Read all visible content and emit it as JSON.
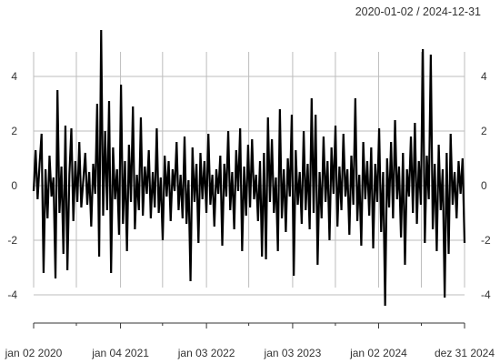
{
  "header": {
    "date_range": "2020-01-02 / 2024-12-31"
  },
  "chart_data": {
    "type": "line",
    "title": "",
    "xlabel": "",
    "ylabel": "",
    "ylim": [
      -4.8,
      5.8
    ],
    "xlim": [
      "2020-01-02",
      "2024-12-31"
    ],
    "grid": true,
    "legend": "none",
    "y_ticks": [
      -4,
      -2,
      0,
      2,
      4
    ],
    "y_tick_labels": [
      "-4",
      "-2",
      "0",
      "2",
      "4"
    ],
    "x_ticks": [
      "2020-01-02",
      "2021-01-04",
      "2022-01-03",
      "2023-01-03",
      "2024-01-02",
      "2024-12-31"
    ],
    "x_tick_labels": [
      "jan 02 2020",
      "jan 04 2021",
      "jan 03 2022",
      "jan 03 2023",
      "jan 02 2024",
      "dez 31 2024"
    ],
    "x_minor_ticks": [
      "2020-07-01",
      "2021-07-01",
      "2022-07-01",
      "2023-07-03",
      "2024-07-01"
    ],
    "series": [
      {
        "color": "#000000",
        "x_start": "2020-01-02",
        "x_end": "2024-12-31",
        "values": [
          -0.2,
          1.3,
          -0.5,
          0.8,
          1.9,
          -3.2,
          0.6,
          -1.2,
          1.1,
          -0.4,
          0.3,
          -3.4,
          3.5,
          -1.0,
          0.7,
          -2.5,
          2.2,
          -3.1,
          0.4,
          2.1,
          -1.3,
          0.9,
          -0.6,
          1.6,
          -0.8,
          0.2,
          1.2,
          -0.7,
          0.5,
          -1.5,
          0.8,
          -0.3,
          3.0,
          -2.6,
          5.7,
          -1.1,
          2.0,
          -0.9,
          3.1,
          -3.2,
          1.4,
          -0.5,
          0.6,
          -1.8,
          3.7,
          -1.4,
          0.9,
          -2.4,
          1.5,
          -0.6,
          2.9,
          -1.6,
          0.4,
          -0.9,
          2.5,
          -1.1,
          0.7,
          -0.3,
          1.3,
          -1.2,
          0.5,
          -0.8,
          2.1,
          -1.0,
          0.3,
          -2.0,
          1.1,
          -0.4,
          0.9,
          -1.3,
          0.6,
          -0.2,
          1.6,
          -0.9,
          0.4,
          -1.2,
          1.8,
          -1.4,
          0.2,
          -3.5,
          1.4,
          -0.6,
          0.8,
          -2.1,
          1.2,
          -0.5,
          0.9,
          -1.0,
          1.9,
          -0.7,
          0.4,
          -1.5,
          0.6,
          -0.3,
          1.1,
          -2.2,
          0.8,
          -0.4,
          2.0,
          -0.9,
          0.5,
          -1.6,
          1.3,
          -0.2,
          2.1,
          -2.4,
          0.7,
          -1.1,
          1.5,
          -0.8,
          1.7,
          -0.5,
          0.4,
          -1.3,
          0.9,
          -2.6,
          1.2,
          -2.7,
          2.5,
          -0.6,
          1.7,
          -1.0,
          0.3,
          -2.4,
          2.8,
          -1.2,
          0.6,
          -1.7,
          1.0,
          -0.4,
          2.6,
          -3.3,
          1.3,
          -0.7,
          0.5,
          -1.4,
          2.0,
          -0.9,
          0.8,
          -1.6,
          3.2,
          -1.0,
          2.6,
          -2.9,
          0.5,
          -1.2,
          1.8,
          -0.6,
          0.9,
          -2.0,
          1.4,
          -0.3,
          2.2,
          -1.5,
          0.7,
          -0.9,
          1.9,
          -0.4,
          0.6,
          -1.8,
          1.1,
          -0.7,
          3.2,
          -1.3,
          0.4,
          -2.2,
          1.6,
          -0.5,
          0.9,
          -1.1,
          1.4,
          -2.3,
          0.8,
          -0.6,
          2.1,
          -1.7,
          0.5,
          -4.4,
          1.0,
          -0.8,
          1.6,
          -1.2,
          2.4,
          -0.5,
          0.7,
          -1.9,
          1.2,
          -2.9,
          0.6,
          -0.4,
          1.8,
          -1.0,
          2.3,
          -1.4,
          0.9,
          -0.7,
          5.0,
          -2.1,
          1.1,
          -0.5,
          4.8,
          -1.6,
          0.8,
          -2.4,
          1.5,
          -0.9,
          0.6,
          -4.1,
          1.2,
          -2.5,
          1.9,
          -0.7,
          0.5,
          -1.2,
          0.9,
          -0.3,
          1.0,
          -2.1
        ]
      }
    ]
  }
}
